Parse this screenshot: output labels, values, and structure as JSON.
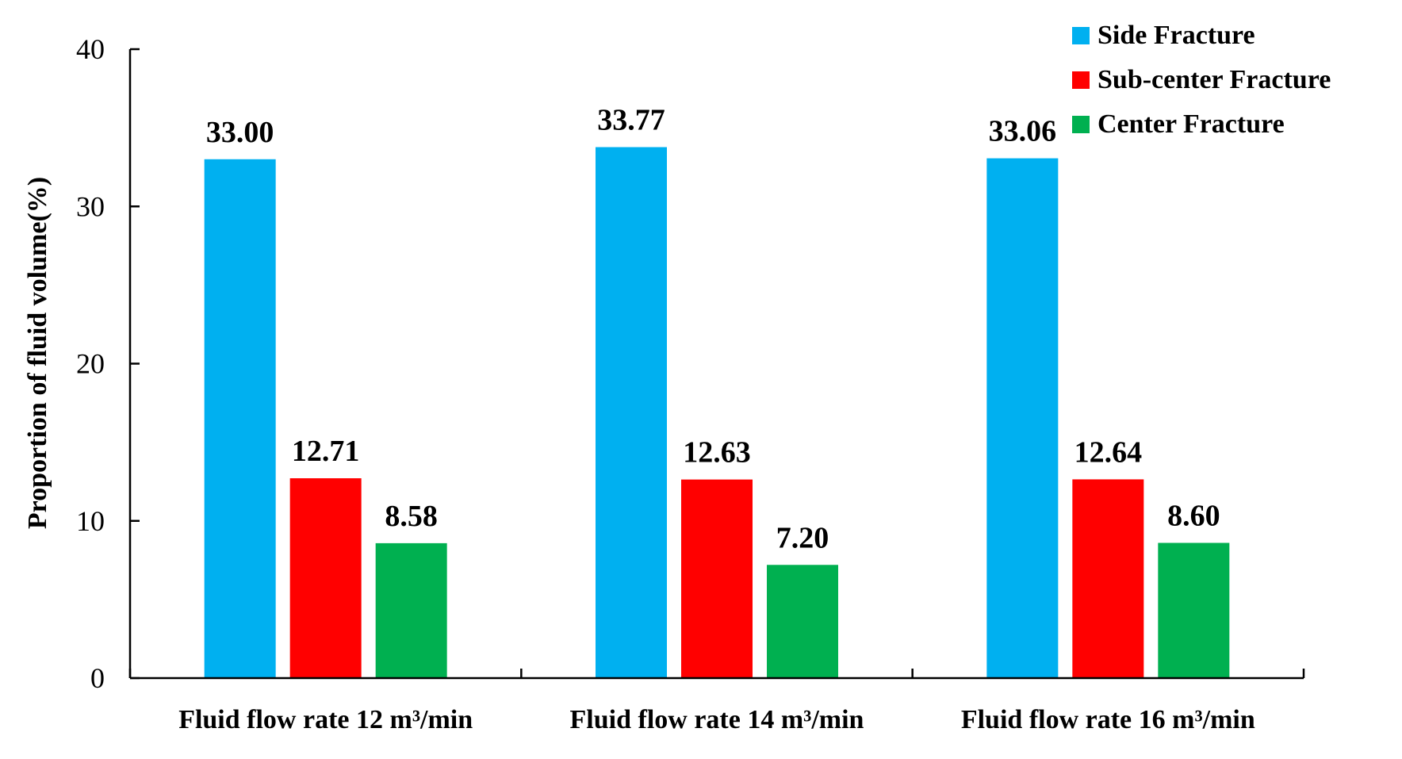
{
  "chart_data": {
    "type": "bar",
    "title": "",
    "xlabel": "",
    "ylabel": "Proportion  of  fluid volume(%)",
    "ylim": [
      0,
      40
    ],
    "yticks": [
      0,
      10,
      20,
      30,
      40
    ],
    "categories": [
      "Fluid flow rate 12 m³/min",
      "Fluid flow rate 14 m³/min",
      "Fluid flow rate 16 m³/min"
    ],
    "series": [
      {
        "name": "Side Fracture",
        "color": "#00B0F0",
        "values": [
          33.0,
          33.77,
          33.06
        ],
        "labels": [
          "33.00",
          "33.77",
          "33.06"
        ]
      },
      {
        "name": "Sub-center Fracture",
        "color": "#FF0000",
        "values": [
          12.71,
          12.63,
          12.64
        ],
        "labels": [
          "12.71",
          "12.63",
          "12.64"
        ]
      },
      {
        "name": "Center Fracture",
        "color": "#00B050",
        "values": [
          8.58,
          7.2,
          8.6
        ],
        "labels": [
          "8.58",
          "7.20",
          "8.60"
        ]
      }
    ],
    "grid": false,
    "legend": "top-right"
  }
}
